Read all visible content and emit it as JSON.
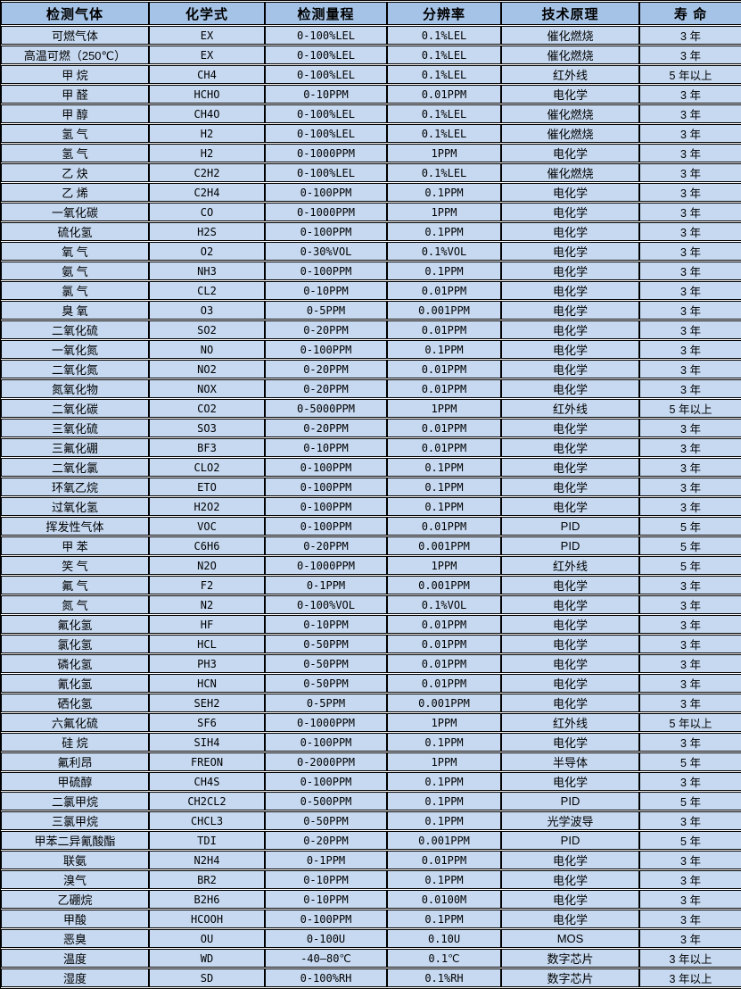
{
  "colors": {
    "header_bg": "#a5c3e6",
    "row_bg": "#c6d9f1",
    "border": "#000000",
    "gap": "#ffffff",
    "text": "#000000"
  },
  "table": {
    "headers": [
      "检测气体",
      "化学式",
      "检测量程",
      "分辨率",
      "技术原理",
      "寿 命"
    ],
    "rows": [
      [
        "可燃气体",
        "EX",
        "0-100%LEL",
        "0.1%LEL",
        "催化燃烧",
        "3 年"
      ],
      [
        "高温可燃（250℃）",
        "EX",
        "0-100%LEL",
        "0.1%LEL",
        "催化燃烧",
        "3 年"
      ],
      [
        "甲 烷",
        "CH4",
        "0-100%LEL",
        "0.1%LEL",
        "红外线",
        "5 年以上"
      ],
      [
        "甲 醛",
        "HCHO",
        "0-10PPM",
        "0.01PPM",
        "电化学",
        "3 年"
      ],
      [
        "甲 醇",
        "CH4O",
        "0-100%LEL",
        "0.1%LEL",
        "催化燃烧",
        "3 年"
      ],
      [
        "氢 气",
        "H2",
        "0-100%LEL",
        "0.1%LEL",
        "催化燃烧",
        "3 年"
      ],
      [
        "氢 气",
        "H2",
        "0-1000PPM",
        "1PPM",
        "电化学",
        "3 年"
      ],
      [
        "乙 炔",
        "C2H2",
        "0-100%LEL",
        "0.1%LEL",
        "催化燃烧",
        "3 年"
      ],
      [
        "乙 烯",
        "C2H4",
        "0-100PPM",
        "0.1PPM",
        "电化学",
        "3 年"
      ],
      [
        "一氧化碳",
        "CO",
        "0-1000PPM",
        "1PPM",
        "电化学",
        "3 年"
      ],
      [
        "硫化氢",
        "H2S",
        "0-100PPM",
        "0.1PPM",
        "电化学",
        "3 年"
      ],
      [
        "氧 气",
        "O2",
        "0-30%VOL",
        "0.1%VOL",
        "电化学",
        "3 年"
      ],
      [
        "氨 气",
        "NH3",
        "0-100PPM",
        "0.1PPM",
        "电化学",
        "3 年"
      ],
      [
        "氯 气",
        "CL2",
        "0-10PPM",
        "0.01PPM",
        "电化学",
        "3 年"
      ],
      [
        "臭 氧",
        "O3",
        "0-5PPM",
        "0.001PPM",
        "电化学",
        "3 年"
      ],
      [
        "二氧化硫",
        "SO2",
        "0-20PPM",
        "0.01PPM",
        "电化学",
        "3 年"
      ],
      [
        "一氧化氮",
        "NO",
        "0-100PPM",
        "0.1PPM",
        "电化学",
        "3 年"
      ],
      [
        "二氧化氮",
        "NO2",
        "0-20PPM",
        "0.01PPM",
        "电化学",
        "3 年"
      ],
      [
        "氮氧化物",
        "NOX",
        "0-20PPM",
        "0.01PPM",
        "电化学",
        "3 年"
      ],
      [
        "二氧化碳",
        "CO2",
        "0-5000PPM",
        "1PPM",
        "红外线",
        "5 年以上"
      ],
      [
        "三氧化硫",
        "SO3",
        "0-20PPM",
        "0.01PPM",
        "电化学",
        "3 年"
      ],
      [
        "三氟化硼",
        "BF3",
        "0-10PPM",
        "0.01PPM",
        "电化学",
        "3 年"
      ],
      [
        "二氧化氯",
        "CLO2",
        "0-100PPM",
        "0.1PPM",
        "电化学",
        "3 年"
      ],
      [
        "环氧乙烷",
        "ETO",
        "0-100PPM",
        "0.1PPM",
        "电化学",
        "3 年"
      ],
      [
        "过氧化氢",
        "H2O2",
        "0-100PPM",
        "0.1PPM",
        "电化学",
        "3 年"
      ],
      [
        "挥发性气体",
        "VOC",
        "0-100PPM",
        "0.01PPM",
        "PID",
        "5 年"
      ],
      [
        "甲 苯",
        "C6H6",
        "0-20PPM",
        "0.001PPM",
        "PID",
        "5 年"
      ],
      [
        "笑 气",
        "N2O",
        "0-1000PPM",
        "1PPM",
        "红外线",
        "5 年"
      ],
      [
        "氟 气",
        "F2",
        "0-1PPM",
        "0.001PPM",
        "电化学",
        "3 年"
      ],
      [
        "氮 气",
        "N2",
        "0-100%VOL",
        "0.1%VOL",
        "电化学",
        "3 年"
      ],
      [
        "氟化氢",
        "HF",
        "0-10PPM",
        "0.01PPM",
        "电化学",
        "3 年"
      ],
      [
        "氯化氢",
        "HCL",
        "0-50PPM",
        "0.01PPM",
        "电化学",
        "3 年"
      ],
      [
        "磷化氢",
        "PH3",
        "0-50PPM",
        "0.01PPM",
        "电化学",
        "3 年"
      ],
      [
        "氰化氢",
        "HCN",
        "0-50PPM",
        "0.01PPM",
        "电化学",
        "3 年"
      ],
      [
        "硒化氢",
        "SEH2",
        "0-5PPM",
        "0.001PPM",
        "电化学",
        "3 年"
      ],
      [
        "六氟化硫",
        "SF6",
        "0-1000PPM",
        "1PPM",
        "红外线",
        "5 年以上"
      ],
      [
        "硅 烷",
        "SIH4",
        "0-100PPM",
        "0.1PPM",
        "电化学",
        "3 年"
      ],
      [
        "氟利昂",
        "FREON",
        "0-2000PPM",
        "1PPM",
        "半导体",
        "5 年"
      ],
      [
        "甲硫醇",
        "CH4S",
        "0-100PPM",
        "0.1PPM",
        "电化学",
        "3 年"
      ],
      [
        "二氯甲烷",
        "CH2CL2",
        "0-500PPM",
        "0.1PPM",
        "PID",
        "5 年"
      ],
      [
        "三氯甲烷",
        "CHCL3",
        "0-50PPM",
        "0.1PPM",
        "光学波导",
        "3 年"
      ],
      [
        "甲苯二异氰酸酯",
        "TDI",
        "0-20PPM",
        "0.001PPM",
        "PID",
        "5 年"
      ],
      [
        "联氨",
        "N2H4",
        "0-1PPM",
        "0.01PPM",
        "电化学",
        "3 年"
      ],
      [
        "溴气",
        "BR2",
        "0-10PPM",
        "0.1PPM",
        "电化学",
        "3 年"
      ],
      [
        "乙硼烷",
        "B2H6",
        "0-10PPM",
        "0.0100M",
        "电化学",
        "3 年"
      ],
      [
        "甲酸",
        "HCOOH",
        "0-100PPM",
        "0.1PPM",
        "电化学",
        "3 年"
      ],
      [
        "恶臭",
        "OU",
        "0-100U",
        "0.10U",
        "MOS",
        "3 年"
      ],
      [
        "温度",
        "WD",
        "-40—80℃",
        "0.1℃",
        "数字芯片",
        "3 年以上"
      ],
      [
        "湿度",
        "SD",
        "0-100%RH",
        "0.1%RH",
        "数字芯片",
        "3 年以上"
      ]
    ]
  }
}
